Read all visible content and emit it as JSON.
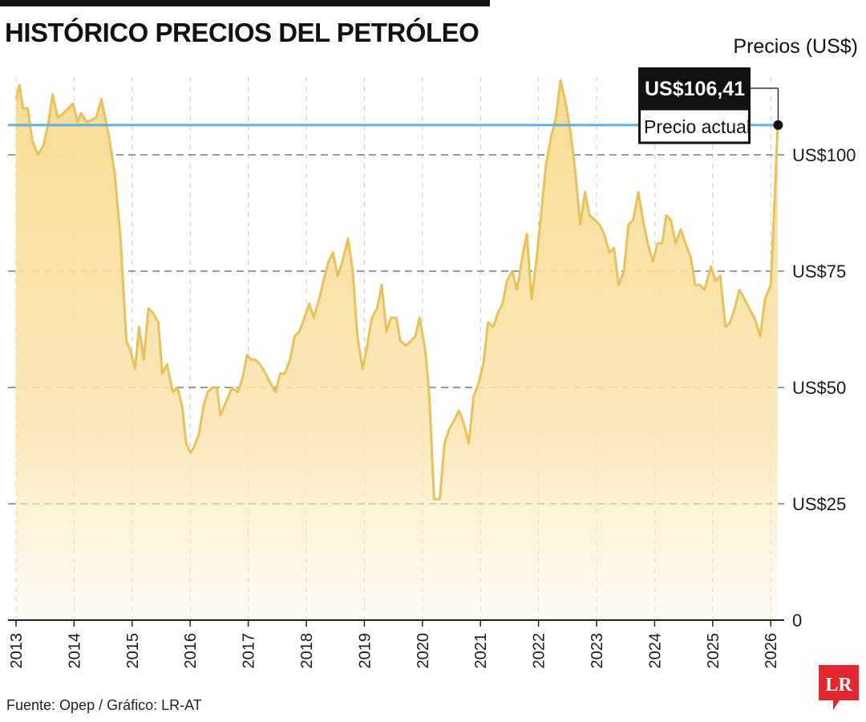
{
  "header": {
    "title": "HISTÓRICO PRECIOS DEL PETRÓLEO",
    "unit_label": "Precios (US$)"
  },
  "callout": {
    "value_label": "US$106,41",
    "caption": "Precio actual"
  },
  "footer": {
    "source": "Fuente: Opep / Gráfico: LR-AT"
  },
  "logo": {
    "text": "LR",
    "color": "#e3262f"
  },
  "colors": {
    "line": "#e8c15a",
    "area_top": "#f7dc95",
    "reference_line": "#5bb1e2",
    "grid": "#7a7a7a"
  },
  "chart_data": {
    "type": "area",
    "ylabel": "Precios (US$)",
    "ylim": [
      0,
      115
    ],
    "y_ticks": [
      {
        "value": 0,
        "label": "0"
      },
      {
        "value": 25,
        "label": "US$25"
      },
      {
        "value": 50,
        "label": "US$50"
      },
      {
        "value": 75,
        "label": "US$75"
      },
      {
        "value": 100,
        "label": "US$100"
      }
    ],
    "x_ticks": [
      "2013",
      "2014",
      "2015",
      "2016",
      "2017",
      "2018",
      "2019",
      "2020",
      "2021",
      "2022",
      "2023",
      "2024",
      "2025",
      "2026"
    ],
    "reference_line": {
      "value": 106.41,
      "label": "Precio actual"
    },
    "grid": "horizontal dashed",
    "series": [
      {
        "points": [
          [
            2013.0,
            112
          ],
          [
            2013.06,
            115
          ],
          [
            2013.12,
            110
          ],
          [
            2013.2,
            110
          ],
          [
            2013.28,
            103
          ],
          [
            2013.38,
            100
          ],
          [
            2013.47,
            102
          ],
          [
            2013.56,
            107
          ],
          [
            2013.63,
            113
          ],
          [
            2013.72,
            108
          ],
          [
            2013.82,
            109
          ],
          [
            2013.98,
            111
          ],
          [
            2014.06,
            107
          ],
          [
            2014.12,
            109
          ],
          [
            2014.22,
            107
          ],
          [
            2014.38,
            108
          ],
          [
            2014.47,
            112
          ],
          [
            2014.6,
            104
          ],
          [
            2014.7,
            96
          ],
          [
            2014.8,
            82
          ],
          [
            2014.9,
            60
          ],
          [
            2014.97,
            58
          ],
          [
            2015.05,
            54
          ],
          [
            2015.12,
            63
          ],
          [
            2015.2,
            56
          ],
          [
            2015.28,
            67
          ],
          [
            2015.36,
            66
          ],
          [
            2015.45,
            64
          ],
          [
            2015.52,
            53
          ],
          [
            2015.6,
            55
          ],
          [
            2015.7,
            49
          ],
          [
            2015.78,
            50
          ],
          [
            2015.86,
            46
          ],
          [
            2015.93,
            38
          ],
          [
            2016.0,
            36
          ],
          [
            2016.06,
            37
          ],
          [
            2016.15,
            40
          ],
          [
            2016.23,
            46
          ],
          [
            2016.3,
            49
          ],
          [
            2016.38,
            50
          ],
          [
            2016.46,
            50
          ],
          [
            2016.52,
            44
          ],
          [
            2016.62,
            47
          ],
          [
            2016.72,
            50
          ],
          [
            2016.82,
            49
          ],
          [
            2016.9,
            52
          ],
          [
            2016.98,
            57
          ],
          [
            2017.05,
            56
          ],
          [
            2017.12,
            56
          ],
          [
            2017.2,
            55
          ],
          [
            2017.3,
            53
          ],
          [
            2017.38,
            51
          ],
          [
            2017.47,
            49
          ],
          [
            2017.55,
            53
          ],
          [
            2017.63,
            53
          ],
          [
            2017.72,
            56
          ],
          [
            2017.8,
            61
          ],
          [
            2017.88,
            62
          ],
          [
            2017.97,
            65
          ],
          [
            2018.05,
            68
          ],
          [
            2018.13,
            65
          ],
          [
            2018.22,
            69
          ],
          [
            2018.3,
            73
          ],
          [
            2018.38,
            77
          ],
          [
            2018.46,
            79
          ],
          [
            2018.54,
            74
          ],
          [
            2018.62,
            77
          ],
          [
            2018.72,
            82
          ],
          [
            2018.8,
            75
          ],
          [
            2018.88,
            61
          ],
          [
            2018.97,
            54
          ],
          [
            2019.05,
            59
          ],
          [
            2019.13,
            65
          ],
          [
            2019.22,
            67
          ],
          [
            2019.3,
            72
          ],
          [
            2019.38,
            62
          ],
          [
            2019.46,
            65
          ],
          [
            2019.55,
            65
          ],
          [
            2019.62,
            60
          ],
          [
            2019.72,
            59
          ],
          [
            2019.8,
            60
          ],
          [
            2019.88,
            61
          ],
          [
            2019.95,
            65
          ],
          [
            2020.05,
            58
          ],
          [
            2020.12,
            48
          ],
          [
            2020.2,
            26
          ],
          [
            2020.3,
            26
          ],
          [
            2020.38,
            38
          ],
          [
            2020.46,
            41
          ],
          [
            2020.55,
            43
          ],
          [
            2020.63,
            45
          ],
          [
            2020.72,
            42
          ],
          [
            2020.8,
            38
          ],
          [
            2020.88,
            48
          ],
          [
            2020.97,
            51
          ],
          [
            2021.05,
            55
          ],
          [
            2021.13,
            64
          ],
          [
            2021.22,
            63
          ],
          [
            2021.3,
            66
          ],
          [
            2021.38,
            68
          ],
          [
            2021.46,
            73
          ],
          [
            2021.55,
            75
          ],
          [
            2021.63,
            71
          ],
          [
            2021.72,
            78
          ],
          [
            2021.8,
            83
          ],
          [
            2021.88,
            69
          ],
          [
            2021.97,
            78
          ],
          [
            2022.05,
            88
          ],
          [
            2022.13,
            98
          ],
          [
            2022.22,
            104
          ],
          [
            2022.3,
            108
          ],
          [
            2022.38,
            116
          ],
          [
            2022.47,
            111
          ],
          [
            2022.55,
            105
          ],
          [
            2022.63,
            97
          ],
          [
            2022.72,
            85
          ],
          [
            2022.8,
            92
          ],
          [
            2022.88,
            87
          ],
          [
            2022.97,
            86
          ],
          [
            2023.05,
            85
          ],
          [
            2023.13,
            83
          ],
          [
            2023.22,
            79
          ],
          [
            2023.3,
            80
          ],
          [
            2023.38,
            72
          ],
          [
            2023.47,
            75
          ],
          [
            2023.55,
            85
          ],
          [
            2023.63,
            86
          ],
          [
            2023.72,
            92
          ],
          [
            2023.8,
            86
          ],
          [
            2023.88,
            81
          ],
          [
            2023.97,
            77
          ],
          [
            2024.05,
            81
          ],
          [
            2024.13,
            81
          ],
          [
            2024.2,
            87
          ],
          [
            2024.28,
            86
          ],
          [
            2024.36,
            81
          ],
          [
            2024.45,
            84
          ],
          [
            2024.53,
            81
          ],
          [
            2024.62,
            78
          ],
          [
            2024.7,
            72
          ],
          [
            2024.78,
            72
          ],
          [
            2024.86,
            71
          ],
          [
            2024.97,
            76
          ],
          [
            2025.05,
            73
          ],
          [
            2025.13,
            74
          ],
          [
            2025.22,
            63
          ],
          [
            2025.3,
            64
          ],
          [
            2025.38,
            67
          ],
          [
            2025.46,
            71
          ],
          [
            2025.55,
            69
          ],
          [
            2025.63,
            67
          ],
          [
            2025.72,
            65
          ],
          [
            2025.82,
            61
          ],
          [
            2025.9,
            69
          ],
          [
            2026.0,
            72
          ],
          [
            2026.06,
            88
          ],
          [
            2026.12,
            106.41
          ]
        ]
      }
    ]
  }
}
